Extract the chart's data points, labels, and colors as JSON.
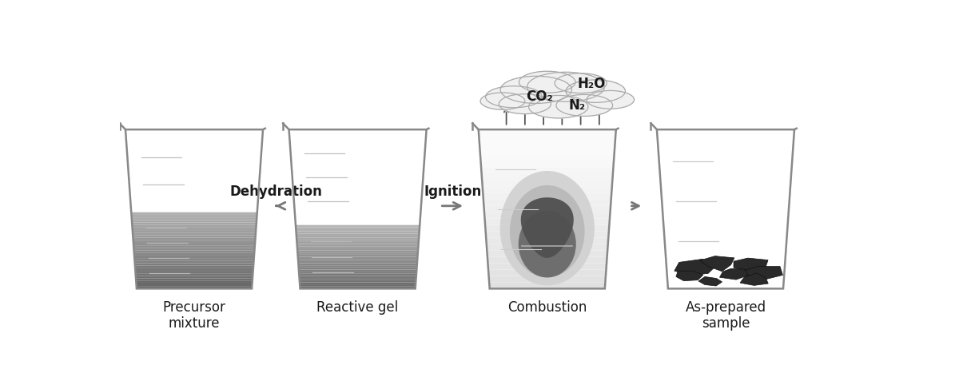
{
  "figure_width": 12.0,
  "figure_height": 4.62,
  "dpi": 100,
  "bg_color": "#ffffff",
  "beaker_edge_color": "#888888",
  "text_color": "#1a1a1a",
  "labels": [
    "Precursor\nmixture",
    "Reactive gel",
    "Combustion",
    "As-prepared\nsample"
  ],
  "arrows": [
    "Dehydration",
    "Ignition"
  ],
  "cloud_text": [
    "H₂O",
    "CO₂",
    "N₂"
  ],
  "grad_line_color": "#cccccc",
  "grad_line_color_dark": "#aaaaaa",
  "arrow_color": "#777777",
  "beaker_lw": 1.8
}
